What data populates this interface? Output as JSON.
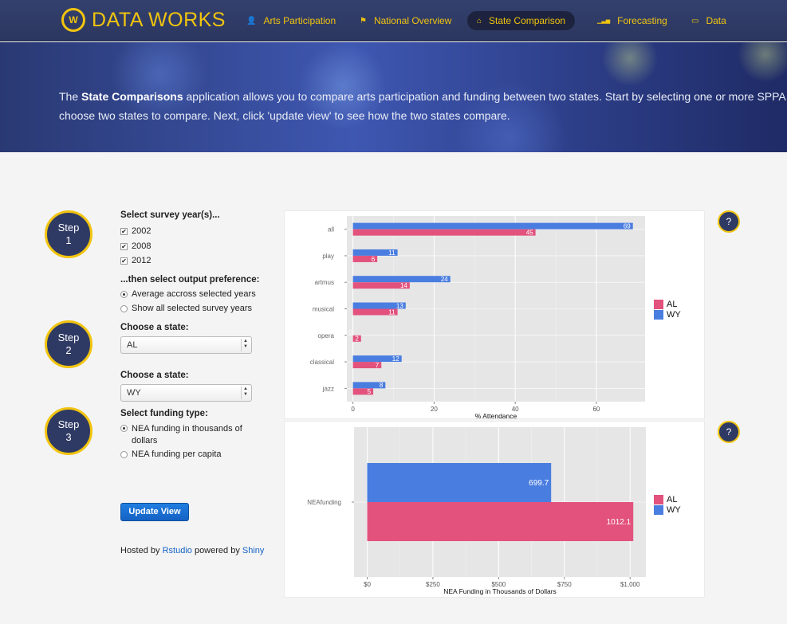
{
  "brand": {
    "title": "DATA WORKS",
    "logo_text": "W"
  },
  "nav": [
    {
      "label": "Arts Participation",
      "icon": "user-icon",
      "glyph": "👤",
      "active": false
    },
    {
      "label": "National Overview",
      "icon": "flag-icon",
      "glyph": "⚑",
      "active": false
    },
    {
      "label": "State Comparison",
      "icon": "home-icon",
      "glyph": "⌂",
      "active": true
    },
    {
      "label": "Forecasting",
      "icon": "signal-icon",
      "glyph": "▁▃▅",
      "active": false
    },
    {
      "label": "Data",
      "icon": "hdd-icon",
      "glyph": "▭",
      "active": false
    }
  ],
  "hero": {
    "prefix": "The ",
    "bold": "State Comparisons",
    "line1": " application allows you to compare arts participation and funding between two states. Start by selecting one or more SPPA",
    "line2": "choose two states to compare. Next, click 'update view' to see how the two states compare."
  },
  "steps": [
    {
      "word": "Step",
      "num": "1"
    },
    {
      "word": "Step",
      "num": "2"
    },
    {
      "word": "Step",
      "num": "3"
    }
  ],
  "form": {
    "years_label": "Select survey year(s)...",
    "years": [
      {
        "label": "2002",
        "checked": true
      },
      {
        "label": "2008",
        "checked": true
      },
      {
        "label": "2012",
        "checked": true
      }
    ],
    "output_label": "...then select output preference:",
    "output_options": [
      "Average accross selected years",
      "Show all selected survey years"
    ],
    "state1_label": "Choose a state:",
    "state1_value": "AL",
    "state2_label": "Choose a state:",
    "state2_value": "WY",
    "funding_label": "Select funding type:",
    "funding_option1_line1": "NEA funding in thousands of",
    "funding_option1_line2": "dollars",
    "funding_option2": "NEA funding per capita",
    "update_button": "Update View",
    "footer_prefix": "Hosted by ",
    "footer_link1": "Rstudio",
    "footer_mid": " powered by ",
    "footer_link2": "Shiny"
  },
  "help_label": "?",
  "colors": {
    "AL": "#e2527d",
    "WY": "#4a7de0",
    "panel": "#e6e6e6",
    "accent": "#f1c40f",
    "navy": "#2f3a64"
  },
  "chart_data": [
    {
      "type": "bar",
      "orientation": "horizontal",
      "categories": [
        "all",
        "play",
        "artmus",
        "musical",
        "opera",
        "classical",
        "jazz"
      ],
      "series": [
        {
          "name": "WY",
          "values": [
            69,
            11,
            24,
            13,
            0,
            12,
            8
          ]
        },
        {
          "name": "AL",
          "values": [
            45,
            6,
            14,
            11,
            2,
            7,
            5
          ]
        }
      ],
      "xlabel": "% Attendance",
      "xlim": [
        -1.5,
        72
      ],
      "xticks": [
        0,
        20,
        40,
        60
      ],
      "legend": [
        "AL",
        "WY"
      ],
      "legend_position": "right",
      "grid": true
    },
    {
      "type": "bar",
      "orientation": "horizontal",
      "categories": [
        "NEAfunding"
      ],
      "series": [
        {
          "name": "WY",
          "values": [
            699.7
          ]
        },
        {
          "name": "AL",
          "values": [
            1012.1
          ]
        }
      ],
      "xlabel": "NEA Funding in Thousands of Dollars",
      "xlim": [
        -50,
        1060
      ],
      "xticks": [
        0,
        250,
        500,
        750,
        1000
      ],
      "xtick_labels": [
        "$0",
        "$250",
        "$500",
        "$750",
        "$1,000"
      ],
      "legend": [
        "AL",
        "WY"
      ],
      "legend_position": "right",
      "grid": true
    }
  ]
}
